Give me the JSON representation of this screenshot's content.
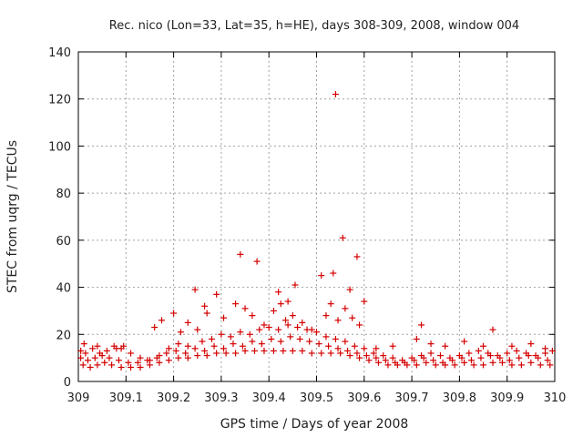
{
  "chart_data": {
    "type": "scatter",
    "title": "Rec. nico (Lon=33, Lat=35, h=HE), days 308-309, 2008, window 004",
    "xlabel": "GPS time / Days of year 2008",
    "ylabel": "STEC from uqrg / TECUs",
    "xlim": [
      309,
      310
    ],
    "ylim": [
      0,
      140
    ],
    "xticks": [
      309,
      309.1,
      309.2,
      309.3,
      309.4,
      309.5,
      309.6,
      309.7,
      309.8,
      309.9,
      310
    ],
    "xtick_labels": [
      "309",
      "309.1",
      "309.2",
      "309.3",
      "309.4",
      "309.5",
      "309.6",
      "309.7",
      "309.8",
      "309.9",
      "310"
    ],
    "yticks": [
      0,
      20,
      40,
      60,
      80,
      100,
      120,
      140
    ],
    "ytick_labels": [
      "0",
      "20",
      "40",
      "60",
      "80",
      "100",
      "120",
      "140"
    ],
    "grid": true,
    "marker": "+",
    "marker_color": "#d40000",
    "series": [
      {
        "name": "",
        "points": [
          [
            309.005,
            13
          ],
          [
            309.015,
            12
          ],
          [
            309.03,
            14
          ],
          [
            309.045,
            12
          ],
          [
            309.06,
            13
          ],
          [
            309.08,
            14
          ],
          [
            309.095,
            15
          ],
          [
            309.11,
            12
          ],
          [
            309.13,
            10
          ],
          [
            309.15,
            9
          ],
          [
            309.17,
            11
          ],
          [
            309.19,
            14
          ],
          [
            309.21,
            16
          ],
          [
            309.23,
            15
          ],
          [
            309.26,
            17
          ],
          [
            309.28,
            18
          ],
          [
            309.3,
            20
          ],
          [
            309.32,
            19
          ],
          [
            309.34,
            21
          ],
          [
            309.36,
            20
          ],
          [
            309.38,
            22
          ],
          [
            309.4,
            23
          ],
          [
            309.42,
            22
          ],
          [
            309.44,
            24
          ],
          [
            309.46,
            23
          ],
          [
            309.48,
            22
          ],
          [
            309.5,
            21
          ],
          [
            309.52,
            19
          ],
          [
            309.54,
            18
          ],
          [
            309.56,
            17
          ],
          [
            309.58,
            15
          ],
          [
            309.6,
            14
          ],
          [
            309.62,
            12
          ],
          [
            309.64,
            11
          ],
          [
            309.66,
            10
          ],
          [
            309.68,
            9
          ],
          [
            309.7,
            10
          ],
          [
            309.72,
            11
          ],
          [
            309.74,
            12
          ],
          [
            309.76,
            11
          ],
          [
            309.78,
            10
          ],
          [
            309.8,
            11
          ],
          [
            309.82,
            12
          ],
          [
            309.84,
            13
          ],
          [
            309.86,
            12
          ],
          [
            309.88,
            11
          ],
          [
            309.9,
            12
          ],
          [
            309.92,
            13
          ],
          [
            309.94,
            12
          ],
          [
            309.96,
            11
          ],
          [
            309.98,
            12
          ],
          [
            309.995,
            13
          ],
          [
            309.005,
            10
          ],
          [
            309.02,
            9
          ],
          [
            309.035,
            10
          ],
          [
            309.05,
            11
          ],
          [
            309.065,
            10
          ],
          [
            309.085,
            9
          ],
          [
            309.105,
            8
          ],
          [
            309.125,
            8
          ],
          [
            309.145,
            9
          ],
          [
            309.165,
            10
          ],
          [
            309.185,
            12
          ],
          [
            309.205,
            13
          ],
          [
            309.225,
            12
          ],
          [
            309.245,
            14
          ],
          [
            309.265,
            13
          ],
          [
            309.285,
            15
          ],
          [
            309.305,
            14
          ],
          [
            309.325,
            16
          ],
          [
            309.345,
            15
          ],
          [
            309.365,
            17
          ],
          [
            309.385,
            16
          ],
          [
            309.405,
            18
          ],
          [
            309.425,
            17
          ],
          [
            309.445,
            19
          ],
          [
            309.465,
            18
          ],
          [
            309.485,
            17
          ],
          [
            309.505,
            16
          ],
          [
            309.525,
            15
          ],
          [
            309.545,
            14
          ],
          [
            309.565,
            13
          ],
          [
            309.585,
            12
          ],
          [
            309.605,
            11
          ],
          [
            309.625,
            10
          ],
          [
            309.645,
            9
          ],
          [
            309.665,
            8
          ],
          [
            309.685,
            8
          ],
          [
            309.705,
            9
          ],
          [
            309.725,
            10
          ],
          [
            309.745,
            9
          ],
          [
            309.765,
            8
          ],
          [
            309.785,
            9
          ],
          [
            309.805,
            10
          ],
          [
            309.825,
            9
          ],
          [
            309.845,
            10
          ],
          [
            309.865,
            11
          ],
          [
            309.885,
            10
          ],
          [
            309.905,
            9
          ],
          [
            309.925,
            10
          ],
          [
            309.945,
            11
          ],
          [
            309.965,
            10
          ],
          [
            309.985,
            9
          ],
          [
            309.01,
            7
          ],
          [
            309.025,
            6
          ],
          [
            309.04,
            7
          ],
          [
            309.055,
            8
          ],
          [
            309.07,
            7
          ],
          [
            309.09,
            6
          ],
          [
            309.11,
            6
          ],
          [
            309.13,
            6
          ],
          [
            309.15,
            7
          ],
          [
            309.17,
            8
          ],
          [
            309.19,
            9
          ],
          [
            309.21,
            10
          ],
          [
            309.23,
            10
          ],
          [
            309.25,
            11
          ],
          [
            309.27,
            11
          ],
          [
            309.29,
            12
          ],
          [
            309.31,
            12
          ],
          [
            309.33,
            12
          ],
          [
            309.35,
            13
          ],
          [
            309.37,
            13
          ],
          [
            309.39,
            13
          ],
          [
            309.41,
            13
          ],
          [
            309.43,
            13
          ],
          [
            309.45,
            13
          ],
          [
            309.47,
            13
          ],
          [
            309.49,
            12
          ],
          [
            309.51,
            12
          ],
          [
            309.53,
            12
          ],
          [
            309.55,
            12
          ],
          [
            309.57,
            11
          ],
          [
            309.59,
            10
          ],
          [
            309.61,
            9
          ],
          [
            309.63,
            8
          ],
          [
            309.65,
            7
          ],
          [
            309.67,
            7
          ],
          [
            309.69,
            7
          ],
          [
            309.71,
            7
          ],
          [
            309.73,
            8
          ],
          [
            309.75,
            7
          ],
          [
            309.77,
            7
          ],
          [
            309.79,
            7
          ],
          [
            309.81,
            8
          ],
          [
            309.83,
            7
          ],
          [
            309.85,
            7
          ],
          [
            309.87,
            8
          ],
          [
            309.89,
            8
          ],
          [
            309.91,
            7
          ],
          [
            309.93,
            7
          ],
          [
            309.95,
            8
          ],
          [
            309.97,
            7
          ],
          [
            309.99,
            7
          ],
          [
            309.012,
            16
          ],
          [
            309.04,
            15
          ],
          [
            309.075,
            15
          ],
          [
            309.09,
            14
          ],
          [
            309.16,
            23
          ],
          [
            309.175,
            26
          ],
          [
            309.2,
            29
          ],
          [
            309.215,
            21
          ],
          [
            309.23,
            25
          ],
          [
            309.25,
            22
          ],
          [
            309.27,
            29
          ],
          [
            309.29,
            37
          ],
          [
            309.305,
            27
          ],
          [
            309.33,
            33
          ],
          [
            309.35,
            31
          ],
          [
            309.365,
            28
          ],
          [
            309.39,
            24
          ],
          [
            309.41,
            30
          ],
          [
            309.425,
            33
          ],
          [
            309.435,
            26
          ],
          [
            309.45,
            28
          ],
          [
            309.47,
            25
          ],
          [
            309.49,
            22
          ],
          [
            309.52,
            28
          ],
          [
            309.53,
            33
          ],
          [
            309.545,
            26
          ],
          [
            309.56,
            31
          ],
          [
            309.575,
            27
          ],
          [
            309.59,
            24
          ],
          [
            309.625,
            14
          ],
          [
            309.66,
            15
          ],
          [
            309.71,
            18
          ],
          [
            309.74,
            16
          ],
          [
            309.77,
            15
          ],
          [
            309.81,
            17
          ],
          [
            309.85,
            15
          ],
          [
            309.91,
            15
          ],
          [
            309.95,
            16
          ],
          [
            309.98,
            14
          ],
          [
            309.245,
            39
          ],
          [
            309.265,
            32
          ],
          [
            309.34,
            54
          ],
          [
            309.375,
            51
          ],
          [
            309.42,
            38
          ],
          [
            309.44,
            34
          ],
          [
            309.455,
            41
          ],
          [
            309.51,
            45
          ],
          [
            309.535,
            46
          ],
          [
            309.54,
            122
          ],
          [
            309.555,
            61
          ],
          [
            309.57,
            39
          ],
          [
            309.585,
            53
          ],
          [
            309.6,
            34
          ],
          [
            309.72,
            24
          ],
          [
            309.87,
            22
          ]
        ]
      }
    ]
  }
}
